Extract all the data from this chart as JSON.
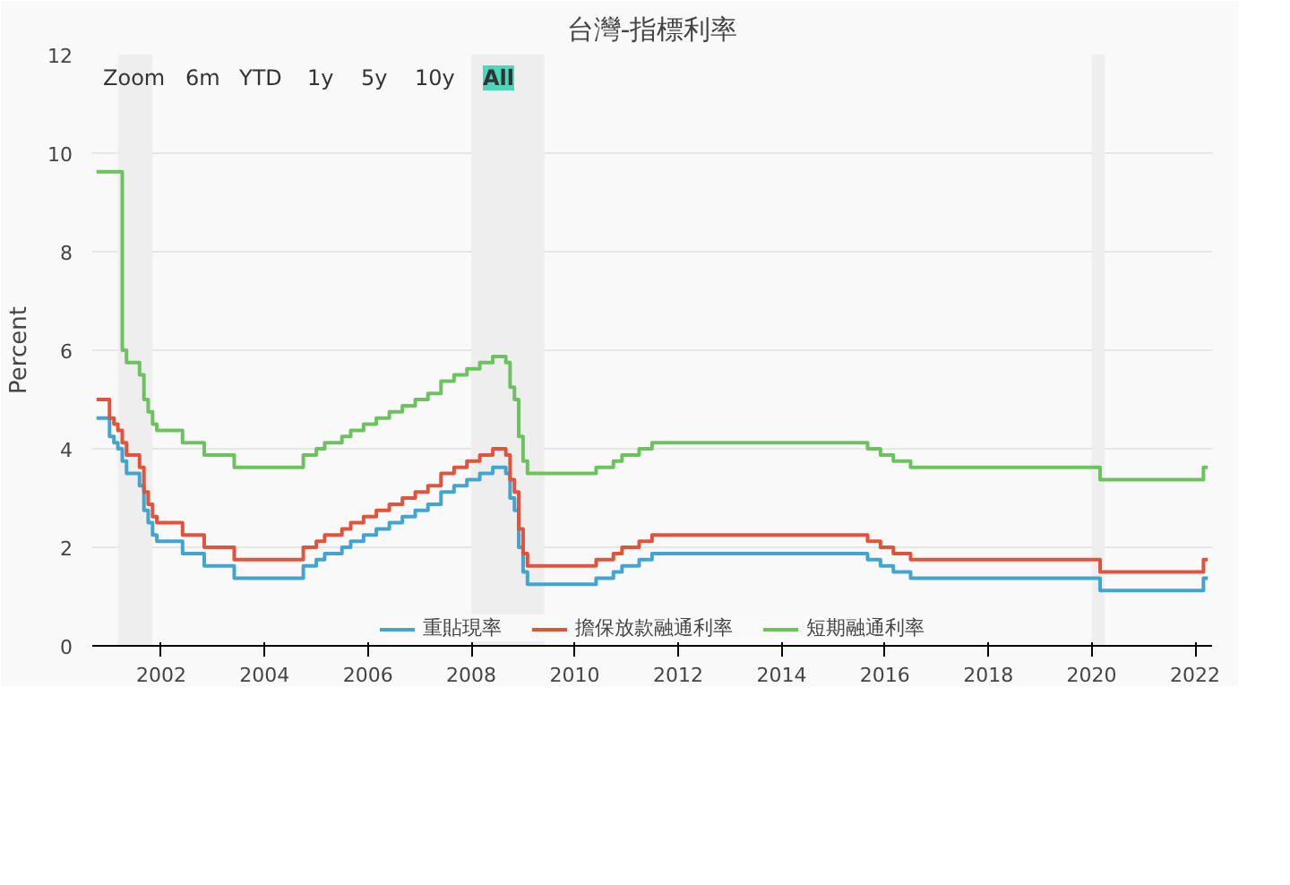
{
  "chart_data": {
    "type": "step",
    "title": "台灣-指標利率",
    "ylabel": "Percent",
    "annotations": [
      "Zoom",
      "6m",
      "YTD",
      "1y",
      "5y",
      "10y",
      "All"
    ],
    "x": [
      "2000-10",
      "2001-01",
      "2001-02",
      "2001-03",
      "2001-04",
      "2001-05",
      "2001-08",
      "2001-09",
      "2001-10",
      "2001-11",
      "2001-12",
      "2002-06",
      "2002-11",
      "2003-06",
      "2004-10",
      "2005-01",
      "2005-03",
      "2005-07",
      "2005-09",
      "2005-12",
      "2006-03",
      "2006-06",
      "2006-09",
      "2006-12",
      "2007-03",
      "2007-06",
      "2007-09",
      "2007-12",
      "2008-03",
      "2008-06",
      "2008-09",
      "2008-10",
      "2008-11",
      "2008-12",
      "2009-01",
      "2009-02",
      "2010-06",
      "2010-10",
      "2010-12",
      "2011-04",
      "2011-07",
      "2015-09",
      "2015-12",
      "2016-03",
      "2016-07",
      "2020-03",
      "2022-03",
      "2022-04"
    ],
    "series": [
      {
        "name": "重貼現率",
        "color": "#41a5d0",
        "values": [
          4.625,
          4.25,
          4.125,
          4.0,
          3.75,
          3.5,
          3.25,
          2.75,
          2.5,
          2.25,
          2.125,
          1.875,
          1.625,
          1.375,
          1.625,
          1.75,
          1.875,
          2.0,
          2.125,
          2.25,
          2.375,
          2.5,
          2.625,
          2.75,
          2.875,
          3.125,
          3.25,
          3.375,
          3.5,
          3.625,
          3.5,
          3.0,
          2.75,
          2.0,
          1.5,
          1.25,
          1.375,
          1.5,
          1.625,
          1.75,
          1.875,
          1.75,
          1.625,
          1.5,
          1.375,
          1.125,
          1.375,
          1.375
        ]
      },
      {
        "name": "擔保放款融通利率",
        "color": "#e0533d",
        "values": [
          5.0,
          4.625,
          4.5,
          4.375,
          4.125,
          3.875,
          3.625,
          3.125,
          2.875,
          2.625,
          2.5,
          2.25,
          2.0,
          1.75,
          2.0,
          2.125,
          2.25,
          2.375,
          2.5,
          2.625,
          2.75,
          2.875,
          3.0,
          3.125,
          3.25,
          3.5,
          3.625,
          3.75,
          3.875,
          4.0,
          3.875,
          3.375,
          3.125,
          2.375,
          1.875,
          1.625,
          1.75,
          1.875,
          2.0,
          2.125,
          2.25,
          2.125,
          2.0,
          1.875,
          1.75,
          1.5,
          1.75,
          1.75
        ]
      },
      {
        "name": "短期融通利率",
        "color": "#6cc25f",
        "values": [
          9.625,
          9.625,
          9.625,
          9.625,
          6.0,
          5.75,
          5.5,
          5.0,
          4.75,
          4.5,
          4.375,
          4.125,
          3.875,
          3.625,
          3.875,
          4.0,
          4.125,
          4.25,
          4.375,
          4.5,
          4.625,
          4.75,
          4.875,
          5.0,
          5.125,
          5.375,
          5.5,
          5.625,
          5.75,
          5.875,
          5.75,
          5.25,
          5.0,
          4.25,
          3.75,
          3.5,
          3.625,
          3.75,
          3.875,
          4.0,
          4.125,
          4.0,
          3.875,
          3.75,
          3.625,
          3.375,
          3.625,
          3.625
        ]
      }
    ],
    "bands": [
      {
        "axis": "x",
        "from": "2001-03",
        "to": "2001-11",
        "color": "#eeeeee"
      },
      {
        "axis": "x",
        "from": "2008-01",
        "to": "2009-06",
        "color": "#eeeeee"
      },
      {
        "axis": "x",
        "from": "2020-01",
        "to": "2020-04",
        "color": "#eeeeee"
      }
    ],
    "xlim": [
      "2000-09",
      "2022-05"
    ],
    "xticks": [
      "2002",
      "2004",
      "2006",
      "2008",
      "2010",
      "2012",
      "2014",
      "2016",
      "2018",
      "2020",
      "2022"
    ],
    "ylim": [
      0,
      12
    ],
    "yticks": [
      0,
      2,
      4,
      6,
      8,
      10,
      12
    ],
    "grid": "y",
    "legend": "bottom",
    "line_style": "solid"
  }
}
